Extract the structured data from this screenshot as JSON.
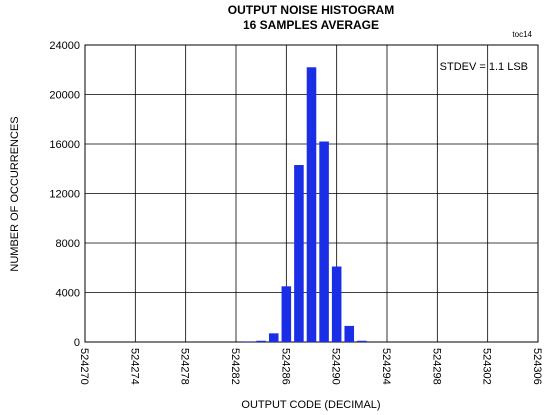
{
  "chart_data": {
    "type": "histogram",
    "title": "OUTPUT NOISE HISTOGRAM",
    "subtitle": "16 SAMPLES AVERAGE",
    "tag": "toc14",
    "annotation": "STDEV = 1.1 LSB",
    "x_label": "OUTPUT CODE (DECIMAL)",
    "y_label": "NUMBER OF OCCURRENCES",
    "bins": [
      524282.5,
      524283.5,
      524284.5,
      524285.5,
      524286.5,
      524287.5,
      524288.5,
      524289.5,
      524290.5,
      524291.5,
      524292.5
    ],
    "counts": [
      50,
      100,
      700,
      4500,
      14300,
      22200,
      16200,
      6100,
      1300,
      100
    ],
    "color": "#1a2ee6",
    "xlim": [
      524270,
      524306
    ],
    "xticks": [
      524270,
      524274,
      524278,
      524282,
      524286,
      524290,
      524294,
      524298,
      524302,
      524306
    ],
    "ylim": [
      0,
      24000
    ],
    "yticks": [
      0,
      4000,
      8000,
      12000,
      16000,
      20000,
      24000
    ],
    "grid": true
  }
}
